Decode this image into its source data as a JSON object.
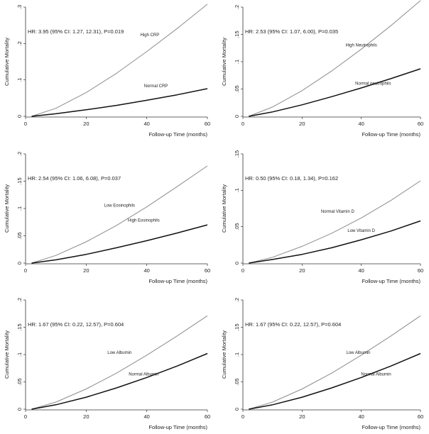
{
  "chart_data": [
    {
      "type": "line",
      "hr_text": "HR: 3.95 (95% CI: 1.27, 12.31), P=0.019",
      "xlabel": "Follow-up Time (months)",
      "ylabel": "Cumulative Mortality",
      "xlim": [
        0,
        60
      ],
      "ylim": [
        0,
        0.3
      ],
      "xticks": [
        0,
        20,
        40,
        60
      ],
      "xtick_labels": [
        "0",
        "20",
        "40",
        "60"
      ],
      "yticks": [
        0,
        0.1,
        0.2,
        0.3
      ],
      "ytick_labels": [
        "0",
        ".1",
        ".2",
        ".3"
      ],
      "series": [
        {
          "name": "High CRP",
          "color": "#8c8c8c",
          "x": [
            2,
            10,
            20,
            30,
            40,
            50,
            60
          ],
          "y": [
            0.0,
            0.022,
            0.065,
            0.118,
            0.178,
            0.241,
            0.308
          ]
        },
        {
          "name": "Normal CRP",
          "color": "#111111",
          "x": [
            2,
            10,
            20,
            30,
            40,
            50,
            60
          ],
          "y": [
            0.0,
            0.007,
            0.018,
            0.03,
            0.044,
            0.059,
            0.076
          ]
        }
      ],
      "series_label_pos": [
        {
          "x": 41,
          "y": 0.22
        },
        {
          "x": 43,
          "y": 0.08
        }
      ]
    },
    {
      "type": "line",
      "hr_text": "HR: 2.53 (95% CI: 1.07, 6.00), P=0.035",
      "xlabel": "Follow-up Time (months)",
      "ylabel": "Cumulative Mortality",
      "xlim": [
        0,
        60
      ],
      "ylim": [
        0,
        0.2
      ],
      "xticks": [
        0,
        20,
        40,
        60
      ],
      "xtick_labels": [
        "0",
        "20",
        "40",
        "60"
      ],
      "yticks": [
        0,
        0.05,
        0.1,
        0.15,
        0.2
      ],
      "ytick_labels": [
        "0",
        ".05",
        ".1",
        ".15",
        ".2"
      ],
      "series": [
        {
          "name": "High Neutrophils",
          "color": "#8c8c8c",
          "x": [
            2,
            10,
            20,
            30,
            40,
            50,
            60
          ],
          "y": [
            0.0,
            0.017,
            0.047,
            0.083,
            0.123,
            0.166,
            0.212
          ]
        },
        {
          "name": "Normal neutrophils",
          "color": "#111111",
          "x": [
            2,
            10,
            20,
            30,
            40,
            50,
            60
          ],
          "y": [
            0.0,
            0.008,
            0.021,
            0.036,
            0.052,
            0.069,
            0.087
          ]
        }
      ],
      "series_label_pos": [
        {
          "x": 40,
          "y": 0.128
        },
        {
          "x": 44,
          "y": 0.058
        }
      ]
    },
    {
      "type": "line",
      "hr_text": "HR: 2.54 (95% CI: 1.06, 6.08), P=0.037",
      "xlabel": "Follow-up Time (months)",
      "ylabel": "Cumulative Mortality",
      "xlim": [
        0,
        60
      ],
      "ylim": [
        0,
        0.2
      ],
      "xticks": [
        0,
        20,
        40,
        60
      ],
      "xtick_labels": [
        "0",
        "20",
        "40",
        "60"
      ],
      "yticks": [
        0,
        0.05,
        0.1,
        0.15,
        0.2
      ],
      "ytick_labels": [
        "0",
        ".05",
        ".1",
        ".15",
        ".2"
      ],
      "series": [
        {
          "name": "Low Eosinophils",
          "color": "#8c8c8c",
          "x": [
            2,
            10,
            20,
            30,
            40,
            50,
            60
          ],
          "y": [
            0.0,
            0.014,
            0.039,
            0.069,
            0.103,
            0.14,
            0.178
          ]
        },
        {
          "name": "High Eosinophils",
          "color": "#111111",
          "x": [
            2,
            10,
            20,
            30,
            40,
            50,
            60
          ],
          "y": [
            0.0,
            0.006,
            0.016,
            0.028,
            0.041,
            0.055,
            0.07
          ]
        }
      ],
      "series_label_pos": [
        {
          "x": 31,
          "y": 0.103
        },
        {
          "x": 39,
          "y": 0.076
        }
      ]
    },
    {
      "type": "line",
      "hr_text": "HR: 0.50 (95% CI: 0.18, 1.34), P=0.162",
      "xlabel": "Follow-up Time (months)",
      "ylabel": "Cumulative Mortality",
      "xlim": [
        0,
        60
      ],
      "ylim": [
        0,
        0.15
      ],
      "xticks": [
        0,
        20,
        40,
        60
      ],
      "xtick_labels": [
        "0",
        "20",
        "40",
        "60"
      ],
      "yticks": [
        0,
        0.05,
        0.1,
        0.15
      ],
      "ytick_labels": [
        "0",
        ".05",
        ".1",
        ".15"
      ],
      "series": [
        {
          "name": "Normal Vitamin D",
          "color": "#8c8c8c",
          "x": [
            2,
            10,
            20,
            30,
            40,
            50,
            60
          ],
          "y": [
            0.0,
            0.008,
            0.023,
            0.041,
            0.062,
            0.086,
            0.113
          ]
        },
        {
          "name": "Low Vitamin D",
          "color": "#111111",
          "x": [
            2,
            10,
            20,
            30,
            40,
            50,
            60
          ],
          "y": [
            0.0,
            0.005,
            0.012,
            0.021,
            0.032,
            0.044,
            0.058
          ]
        }
      ],
      "series_label_pos": [
        {
          "x": 32,
          "y": 0.069
        },
        {
          "x": 40,
          "y": 0.043
        }
      ]
    },
    {
      "type": "line",
      "hr_text": "HR: 1.67 (95% CI: 0.22, 12.57), P=0.604",
      "xlabel": "Follow-up Time (months)",
      "ylabel": "Cumulative Mortality",
      "xlim": [
        0,
        60
      ],
      "ylim": [
        0,
        0.2
      ],
      "xticks": [
        0,
        20,
        40,
        60
      ],
      "xtick_labels": [
        "0",
        "20",
        "40",
        "60"
      ],
      "yticks": [
        0,
        0.05,
        0.1,
        0.15,
        0.2
      ],
      "ytick_labels": [
        "0",
        ".05",
        ".1",
        ".15",
        ".2"
      ],
      "series": [
        {
          "name": "Low Albumin",
          "color": "#8c8c8c",
          "x": [
            2,
            10,
            20,
            30,
            40,
            50,
            60
          ],
          "y": [
            0.0,
            0.013,
            0.037,
            0.066,
            0.099,
            0.134,
            0.171
          ]
        },
        {
          "name": "Normal Albumin",
          "color": "#111111",
          "x": [
            2,
            10,
            20,
            30,
            40,
            50,
            60
          ],
          "y": [
            0.0,
            0.008,
            0.022,
            0.039,
            0.058,
            0.079,
            0.102
          ]
        }
      ],
      "series_label_pos": [
        {
          "x": 31,
          "y": 0.101
        },
        {
          "x": 39,
          "y": 0.062
        }
      ]
    },
    {
      "type": "line",
      "hr_text": "HR: 1.67 (95% CI: 0.22, 12.57), P=0.604",
      "xlabel": "Follow-up Time (months)",
      "ylabel": "Cumulative Mortality",
      "xlim": [
        0,
        60
      ],
      "ylim": [
        0,
        0.2
      ],
      "xticks": [
        0,
        20,
        40,
        60
      ],
      "xtick_labels": [
        "0",
        "20",
        "40",
        "60"
      ],
      "yticks": [
        0,
        0.05,
        0.1,
        0.15,
        0.2
      ],
      "ytick_labels": [
        "0",
        ".05",
        ".1",
        ".15",
        ".2"
      ],
      "series": [
        {
          "name": "Low Albumin",
          "color": "#8c8c8c",
          "x": [
            2,
            10,
            20,
            30,
            40,
            50,
            60
          ],
          "y": [
            0.0,
            0.013,
            0.037,
            0.066,
            0.099,
            0.134,
            0.171
          ]
        },
        {
          "name": "Normal Albumin",
          "color": "#111111",
          "x": [
            2,
            10,
            20,
            30,
            40,
            50,
            60
          ],
          "y": [
            0.0,
            0.008,
            0.022,
            0.039,
            0.058,
            0.079,
            0.102
          ]
        }
      ],
      "series_label_pos": [
        {
          "x": 39,
          "y": 0.101
        },
        {
          "x": 45,
          "y": 0.062
        }
      ]
    }
  ]
}
